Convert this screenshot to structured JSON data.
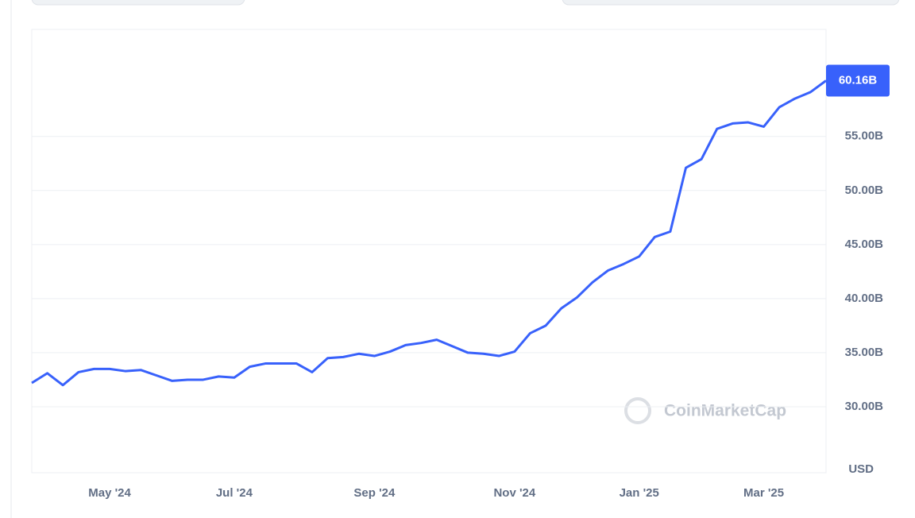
{
  "chart_data": {
    "type": "line",
    "color": "#3861fb",
    "categories": [
      null,
      null,
      null,
      null,
      null,
      "May '24",
      null,
      null,
      null,
      null,
      null,
      null,
      null,
      "Jul '24",
      null,
      null,
      null,
      null,
      null,
      null,
      null,
      null,
      "Sep '24",
      null,
      null,
      null,
      null,
      null,
      null,
      null,
      null,
      "Nov '24",
      null,
      null,
      null,
      null,
      null,
      null,
      null,
      "Jan '25",
      null,
      null,
      null,
      null,
      null,
      null,
      null,
      "Mar '25",
      null,
      null,
      null,
      null
    ],
    "values": [
      32.2,
      33.1,
      32.0,
      33.2,
      33.5,
      33.5,
      33.3,
      33.4,
      32.9,
      32.4,
      32.5,
      32.5,
      32.8,
      32.7,
      33.7,
      34.0,
      34.0,
      34.0,
      33.2,
      34.5,
      34.6,
      34.9,
      34.7,
      35.1,
      35.7,
      35.9,
      36.2,
      35.6,
      35.0,
      34.9,
      34.7,
      35.1,
      36.8,
      37.5,
      39.1,
      40.1,
      41.5,
      42.6,
      43.2,
      43.9,
      45.7,
      46.2,
      52.1,
      52.9,
      55.7,
      56.2,
      56.3,
      55.9,
      57.7,
      58.5,
      59.1,
      60.16
    ],
    "value_labels": [
      null,
      null,
      null,
      null,
      null,
      null,
      null,
      null,
      null,
      null,
      null,
      null,
      null,
      null,
      null,
      null,
      null,
      null,
      null,
      null,
      null,
      null,
      null,
      null,
      null,
      null,
      null,
      null,
      null,
      null,
      null,
      null,
      null,
      null,
      null,
      null,
      null,
      null,
      null,
      null,
      null,
      null,
      null,
      null,
      null,
      null,
      null,
      null,
      null,
      null,
      null,
      "60.16B"
    ],
    "ylim": [
      23.9,
      64.9
    ],
    "yticks": [
      {
        "value": 30,
        "label": "30.00B"
      },
      {
        "value": 35,
        "label": "35.00B"
      },
      {
        "value": 40,
        "label": "40.00B"
      },
      {
        "value": 45,
        "label": "45.00B"
      },
      {
        "value": 50,
        "label": "50.00B"
      },
      {
        "value": 55,
        "label": "55.00B"
      }
    ],
    "y_axis_label": "USD",
    "watermark": "CoinMarketCap",
    "grid": true
  }
}
